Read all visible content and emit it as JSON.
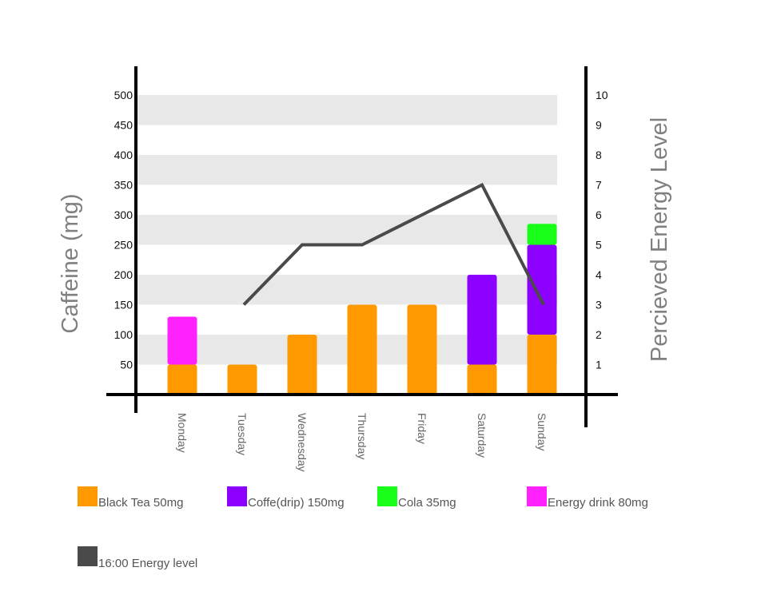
{
  "chart_data": {
    "type": "bar",
    "stacked": true,
    "categories": [
      "Monday",
      "Tuesday",
      "Wednesday",
      "Thursday",
      "Friday",
      "Saturday",
      "Sunday"
    ],
    "series": [
      {
        "name": "Black Tea 50mg",
        "color": "#ff9900",
        "values": [
          50,
          50,
          100,
          150,
          150,
          50,
          100
        ]
      },
      {
        "name": "Coffe(drip) 150mg",
        "color": "#8c00ff",
        "values": [
          0,
          0,
          0,
          0,
          0,
          150,
          150
        ]
      },
      {
        "name": "Cola 35mg",
        "color": "#1aff1a",
        "values": [
          0,
          0,
          0,
          0,
          0,
          0,
          35
        ]
      },
      {
        "name": "Energy drink 80mg",
        "color": "#ff22ff",
        "values": [
          80,
          0,
          0,
          0,
          0,
          0,
          0
        ]
      }
    ],
    "line": {
      "name": "16:00 Energy level",
      "color": "#4a4a4a",
      "values": [
        null,
        3,
        5,
        5,
        6,
        7,
        3
      ]
    },
    "ylabel": "Caffeine (mg)",
    "y2label": "Percieved Energy Level",
    "ylim": [
      0,
      500
    ],
    "y2lim": [
      0,
      10
    ],
    "yticks": [
      50,
      100,
      150,
      200,
      250,
      300,
      350,
      400,
      450,
      500
    ],
    "y2ticks": [
      1,
      2,
      3,
      4,
      5,
      6,
      7,
      8,
      9,
      10
    ],
    "grid": "alternating horizontal bands",
    "legend_position": "bottom"
  }
}
